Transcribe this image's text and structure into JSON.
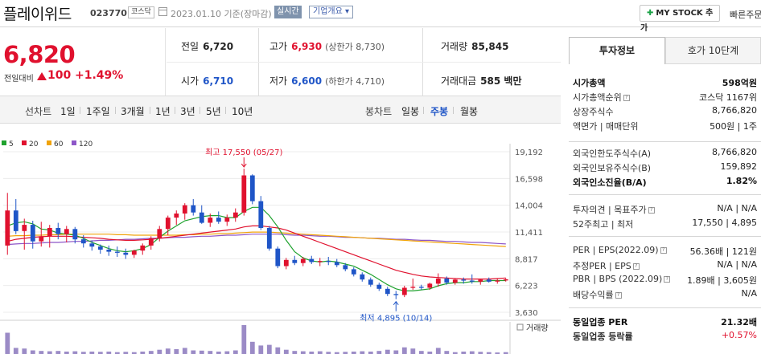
{
  "header": {
    "company_name": "플레이위드",
    "code": "023770",
    "market_badge": "코스닥",
    "date_text": "2023.01.10  기준(장마감)",
    "realtime_label": "실시간",
    "overview_label": "기업개요 ▾",
    "mystock_label": "MY STOCK 추가",
    "quick_label": "빠른주문"
  },
  "price": {
    "current": "6,820",
    "change_label": "전일대비",
    "change_amount": "100",
    "change_pct": "+1.49%"
  },
  "quote": {
    "prev_close_label": "전일",
    "prev_close": "6,720",
    "high_label": "고가",
    "high": "6,930",
    "upper_limit": "(상한가 8,730)",
    "volume_label": "거래량",
    "volume": "85,845",
    "open_label": "시가",
    "open": "6,710",
    "low_label": "저가",
    "low": "6,600",
    "lower_limit": "(하한가 4,710)",
    "amount_label": "거래대금",
    "amount": "585 백만"
  },
  "period_bar": {
    "line_chart_label": "선차트",
    "line_periods": [
      "1일",
      "1주일",
      "3개월",
      "1년",
      "3년",
      "5년",
      "10년"
    ],
    "candle_label": "봉차트",
    "candle_periods": [
      "일봉",
      "주봉",
      "월봉"
    ],
    "active_candle": "주봉"
  },
  "chart_data": {
    "type": "candlestick",
    "legend": [
      {
        "name": "5",
        "color": "#1fa22e"
      },
      {
        "name": "20",
        "color": "#e0112e"
      },
      {
        "name": "60",
        "color": "#f0a30a"
      },
      {
        "name": "120",
        "color": "#8d56c8"
      }
    ],
    "y_ticks": [
      "19,192",
      "16,598",
      "14,004",
      "11,411",
      "8,817",
      "6,223",
      "3,630"
    ],
    "ylim": [
      3630,
      19192
    ],
    "max_annotation": "최고 17,550 (05/27)",
    "min_annotation": "최저 4,895 (10/14)",
    "volume_label": "거래량",
    "up_color": "#e0112e",
    "down_color": "#1f55c7",
    "candles": [
      [
        10100,
        15200,
        9200,
        13500
      ],
      [
        13500,
        14600,
        11200,
        11500
      ],
      [
        11500,
        12700,
        9700,
        12100
      ],
      [
        12100,
        12500,
        9800,
        10500
      ],
      [
        10500,
        12400,
        10000,
        11000
      ],
      [
        11000,
        12100,
        9900,
        11800
      ],
      [
        11800,
        12300,
        10700,
        11200
      ],
      [
        11200,
        12000,
        10400,
        11700
      ],
      [
        11700,
        11900,
        10300,
        10700
      ],
      [
        10700,
        11100,
        9900,
        10300
      ],
      [
        10300,
        10600,
        9600,
        10000
      ],
      [
        10000,
        10200,
        9300,
        9700
      ],
      [
        9700,
        10100,
        9100,
        9500
      ],
      [
        9500,
        10000,
        9000,
        9400
      ],
      [
        9400,
        9800,
        8800,
        9200
      ],
      [
        9200,
        9700,
        8900,
        9600
      ],
      [
        9600,
        10300,
        9200,
        10100
      ],
      [
        10100,
        11000,
        9700,
        10800
      ],
      [
        10800,
        12000,
        10500,
        11700
      ],
      [
        11700,
        13000,
        11100,
        12800
      ],
      [
        12800,
        13500,
        12100,
        13200
      ],
      [
        13200,
        14200,
        12600,
        14000
      ],
      [
        14000,
        14600,
        13000,
        13300
      ],
      [
        13300,
        14000,
        12200,
        12300
      ],
      [
        12300,
        13200,
        11900,
        12800
      ],
      [
        12800,
        13400,
        12200,
        12400
      ],
      [
        12400,
        13100,
        12000,
        12800
      ],
      [
        12800,
        13700,
        12400,
        13300
      ],
      [
        13300,
        17550,
        13000,
        16900
      ],
      [
        16900,
        17000,
        14100,
        14400
      ],
      [
        14400,
        14900,
        11600,
        11800
      ],
      [
        11800,
        12000,
        9600,
        9800
      ],
      [
        9800,
        10000,
        7900,
        8100
      ],
      [
        8100,
        8900,
        7800,
        8700
      ],
      [
        8700,
        9100,
        8200,
        8400
      ],
      [
        8400,
        9000,
        8100,
        8800
      ],
      [
        8800,
        9100,
        8300,
        8500
      ],
      [
        8500,
        8900,
        8100,
        8600
      ],
      [
        8600,
        9000,
        8200,
        8500
      ],
      [
        8500,
        8800,
        8000,
        8200
      ],
      [
        8200,
        8400,
        7600,
        7800
      ],
      [
        7800,
        8000,
        7100,
        7300
      ],
      [
        7300,
        7500,
        6600,
        6800
      ],
      [
        6800,
        7000,
        6100,
        6300
      ],
      [
        6300,
        6500,
        5700,
        5900
      ],
      [
        5900,
        6100,
        5200,
        5400
      ],
      [
        5400,
        5700,
        4895,
        5300
      ],
      [
        5300,
        6200,
        5100,
        6000
      ],
      [
        6000,
        6900,
        5800,
        6100
      ],
      [
        6100,
        6300,
        5800,
        6000
      ],
      [
        6000,
        6500,
        5800,
        6400
      ],
      [
        6400,
        7400,
        6100,
        6900
      ],
      [
        6900,
        7100,
        6300,
        6500
      ],
      [
        6500,
        6900,
        6300,
        6800
      ],
      [
        6800,
        7000,
        6400,
        6700
      ],
      [
        6700,
        7300,
        6400,
        6600
      ],
      [
        6600,
        6900,
        6300,
        6800
      ],
      [
        6800,
        7000,
        6500,
        6600
      ],
      [
        6600,
        6900,
        6400,
        6700
      ],
      [
        6710,
        6930,
        6600,
        6820
      ]
    ],
    "ma5": [
      12000,
      12300,
      12400,
      12200,
      11700,
      11600,
      11300,
      11200,
      11100,
      10800,
      10400,
      10100,
      9800,
      9600,
      9500,
      9600,
      9800,
      10200,
      10900,
      11500,
      12000,
      12500,
      12700,
      12900,
      13000,
      13000,
      12800,
      12800,
      13400,
      13800,
      13800,
      13000,
      11900,
      10600,
      9500,
      8900,
      8600,
      8500,
      8600,
      8500,
      8300,
      8100,
      7700,
      7300,
      6800,
      6300,
      5900,
      5700,
      5700,
      5800,
      5900,
      6200,
      6400,
      6500,
      6500,
      6600,
      6600,
      6700,
      6700,
      6700
    ],
    "ma20": [
      10500,
      10700,
      10800,
      10900,
      10950,
      11000,
      11000,
      11000,
      10950,
      10900,
      10850,
      10800,
      10700,
      10650,
      10600,
      10600,
      10650,
      10700,
      10800,
      10900,
      11000,
      11100,
      11200,
      11300,
      11400,
      11500,
      11600,
      11700,
      11900,
      12000,
      12000,
      11900,
      11800,
      11600,
      11300,
      11000,
      10700,
      10400,
      10100,
      9800,
      9500,
      9200,
      8900,
      8600,
      8300,
      8000,
      7700,
      7500,
      7300,
      7150,
      7050,
      7000,
      6950,
      6900,
      6850,
      6850,
      6850,
      6850,
      6900,
      6950
    ],
    "ma60": [
      11000,
      11050,
      11050,
      11100,
      11100,
      11150,
      11150,
      11200,
      11200,
      11200,
      11200,
      11200,
      11200,
      11150,
      11150,
      11100,
      11100,
      11100,
      11100,
      11100,
      11100,
      11150,
      11150,
      11200,
      11200,
      11250,
      11250,
      11300,
      11350,
      11400,
      11400,
      11400,
      11350,
      11300,
      11250,
      11200,
      11150,
      11100,
      11050,
      11000,
      10950,
      10900,
      10850,
      10800,
      10750,
      10700,
      10650,
      10600,
      10550,
      10500,
      10450,
      10400,
      10350,
      10300,
      10250,
      10200,
      10150,
      10100,
      10050,
      10000
    ],
    "ma120": [
      10200,
      10250,
      10300,
      10300,
      10350,
      10400,
      10400,
      10450,
      10500,
      10500,
      10550,
      10600,
      10600,
      10650,
      10700,
      10700,
      10750,
      10800,
      10800,
      10850,
      10900,
      10900,
      10950,
      11000,
      11000,
      11050,
      11100,
      11100,
      11150,
      11200,
      11200,
      11200,
      11200,
      11150,
      11100,
      11100,
      11050,
      11000,
      11000,
      10950,
      10900,
      10900,
      10850,
      10800,
      10800,
      10750,
      10700,
      10700,
      10650,
      10600,
      10600,
      10550,
      10500,
      10500,
      10450,
      10400,
      10400,
      10350,
      10300,
      10250
    ],
    "volume": [
      70,
      20,
      18,
      12,
      10,
      9,
      10,
      8,
      9,
      7,
      8,
      7,
      8,
      6,
      7,
      6,
      8,
      10,
      14,
      18,
      16,
      20,
      12,
      11,
      10,
      8,
      9,
      12,
      95,
      40,
      28,
      30,
      22,
      14,
      10,
      9,
      8,
      9,
      7,
      6,
      7,
      8,
      9,
      8,
      10,
      14,
      12,
      22,
      18,
      10,
      8,
      20,
      10,
      6,
      8,
      9,
      7,
      6,
      5,
      6
    ]
  },
  "right_panel": {
    "tabs": [
      "투자정보",
      "호가 10단계"
    ],
    "active_tab": "투자정보",
    "rows": [
      {
        "label": "시가총액",
        "value": "598억원"
      },
      {
        "label": "시가총액순위",
        "value": "코스닥  1167위"
      },
      {
        "label": "상장주식수",
        "value": "8,766,820"
      },
      {
        "label": "액면가 | 매매단위",
        "value": "500원 | 1주"
      },
      {
        "label": "외국인한도주식수(A)",
        "value": "8,766,820"
      },
      {
        "label": "외국인보유주식수(B)",
        "value": "159,892"
      },
      {
        "label": "외국인소진율(B/A)",
        "value": "1.82%"
      },
      {
        "label": "투자의견 | 목표주가",
        "value": "N/A | N/A"
      },
      {
        "label": "52주최고 | 최저",
        "value": "17,550 | 4,895"
      },
      {
        "label": "PER | EPS(2022.09)",
        "value": "56.36배 | 121원"
      },
      {
        "label": "추정PER | EPS",
        "value": "N/A | N/A"
      },
      {
        "label": "PBR | BPS (2022.09)",
        "value": "1.89배 | 3,605원"
      },
      {
        "label": "배당수익률",
        "value": "N/A"
      },
      {
        "label": "동일업종 PER",
        "value": "21.32배"
      },
      {
        "label": "동일업종 등락률",
        "value": "+0.57%"
      }
    ]
  }
}
